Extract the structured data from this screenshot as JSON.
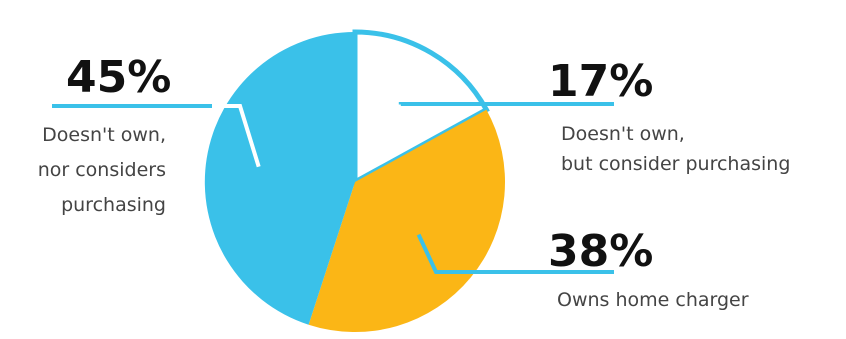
{
  "chart_data": {
    "type": "pie",
    "slices": [
      {
        "value": 17,
        "pct_label": "17%",
        "label_lines": [
          "Doesn't own,",
          "but consider purchasing"
        ],
        "color": "#ffffff"
      },
      {
        "value": 38,
        "pct_label": "38%",
        "label_lines": [
          "Owns home charger"
        ],
        "color": "#fbb616"
      },
      {
        "value": 45,
        "pct_label": "45%",
        "label_lines": [
          "Doesn't own,",
          "nor considers",
          "purchasing"
        ],
        "color": "#3ac1e9"
      }
    ],
    "outline_color": "#3ac1e9",
    "leader_color": "#3ac1e9",
    "start": "12 o'clock, clockwise"
  }
}
